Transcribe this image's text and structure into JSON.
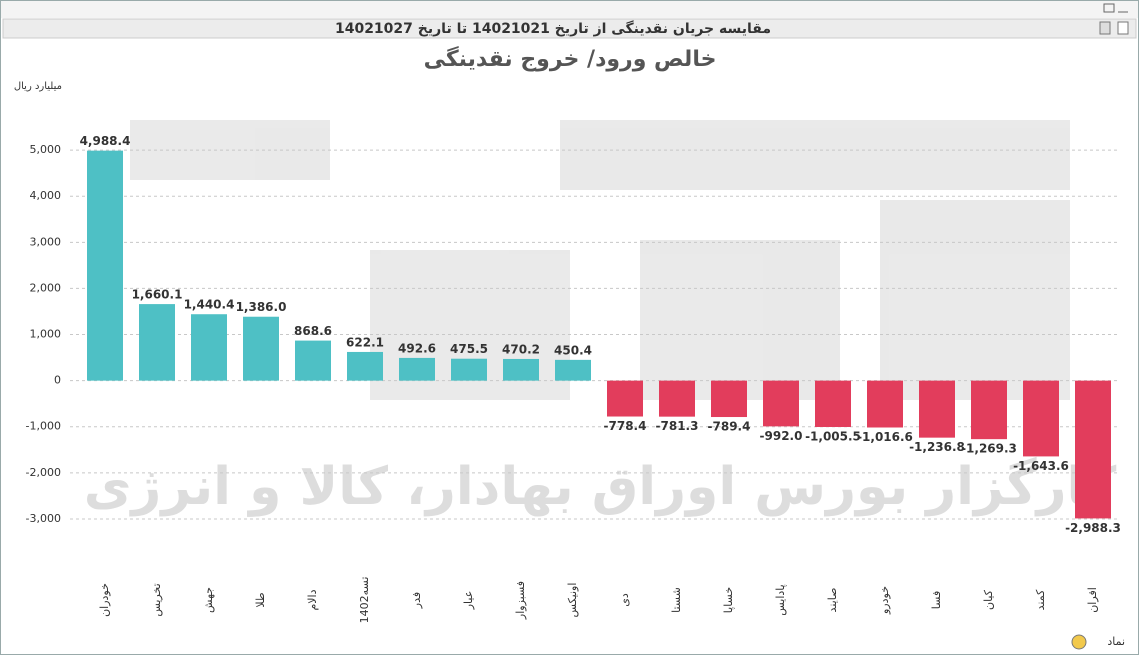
{
  "window_title": "مقایسه جریان نقدینگی از تاریخ 14021021 تا تاریخ 14021027",
  "watermark": "کارگزار بورس اوراق بهادار، کالا و انرژی",
  "chart_data": {
    "type": "bar",
    "title": "خالص ورود/ خروج نقدینگی",
    "y_label": "میلیارد ریال",
    "x_label": "نماد",
    "categories": [
      "خودران",
      "تخریس",
      "جهش",
      "طلا",
      "دالام",
      "تسه1402",
      "فدر",
      "عیار",
      "فسبزوار",
      "اونیکس",
      "دی",
      "شستا",
      "خساپا",
      "پادایس",
      "صایند",
      "خودرو",
      "فسا",
      "کیان",
      "کمند",
      "افران"
    ],
    "values": [
      4988.4,
      1660.1,
      1440.4,
      1386.0,
      868.6,
      622.1,
      492.6,
      475.5,
      470.2,
      450.4,
      -778.4,
      -781.3,
      -789.4,
      -992.0,
      -1005.5,
      -1016.6,
      -1236.8,
      -1269.3,
      -1643.6,
      -2988.3
    ],
    "value_labels": [
      "4,988.4",
      "1,660.1",
      "1,440.4",
      "1,386.0",
      "868.6",
      "622.1",
      "492.6",
      "475.5",
      "470.2",
      "450.4",
      "-778.4",
      "-781.3",
      "-789.4",
      "-992.0",
      "-1,005.5",
      "-1,016.6",
      "-1,236.8",
      "-1,269.3",
      "-1,643.6",
      "-2,988.3"
    ],
    "positive_color": "#4ec0c5",
    "negative_color": "#e23d5c",
    "ylim": [
      -3500,
      6000
    ],
    "yticks": [
      {
        "value": -3000,
        "label": "-3,000"
      },
      {
        "value": -2000,
        "label": "-2,000"
      },
      {
        "value": -1000,
        "label": "-1,000"
      },
      0,
      {
        "value": 1000,
        "label": "1,000"
      },
      {
        "value": 2000,
        "label": "2,000"
      },
      {
        "value": 3000,
        "label": "3,000"
      },
      {
        "value": 4000,
        "label": "4,000"
      },
      {
        "value": 5000,
        "label": "5,000"
      }
    ],
    "grid": true
  }
}
